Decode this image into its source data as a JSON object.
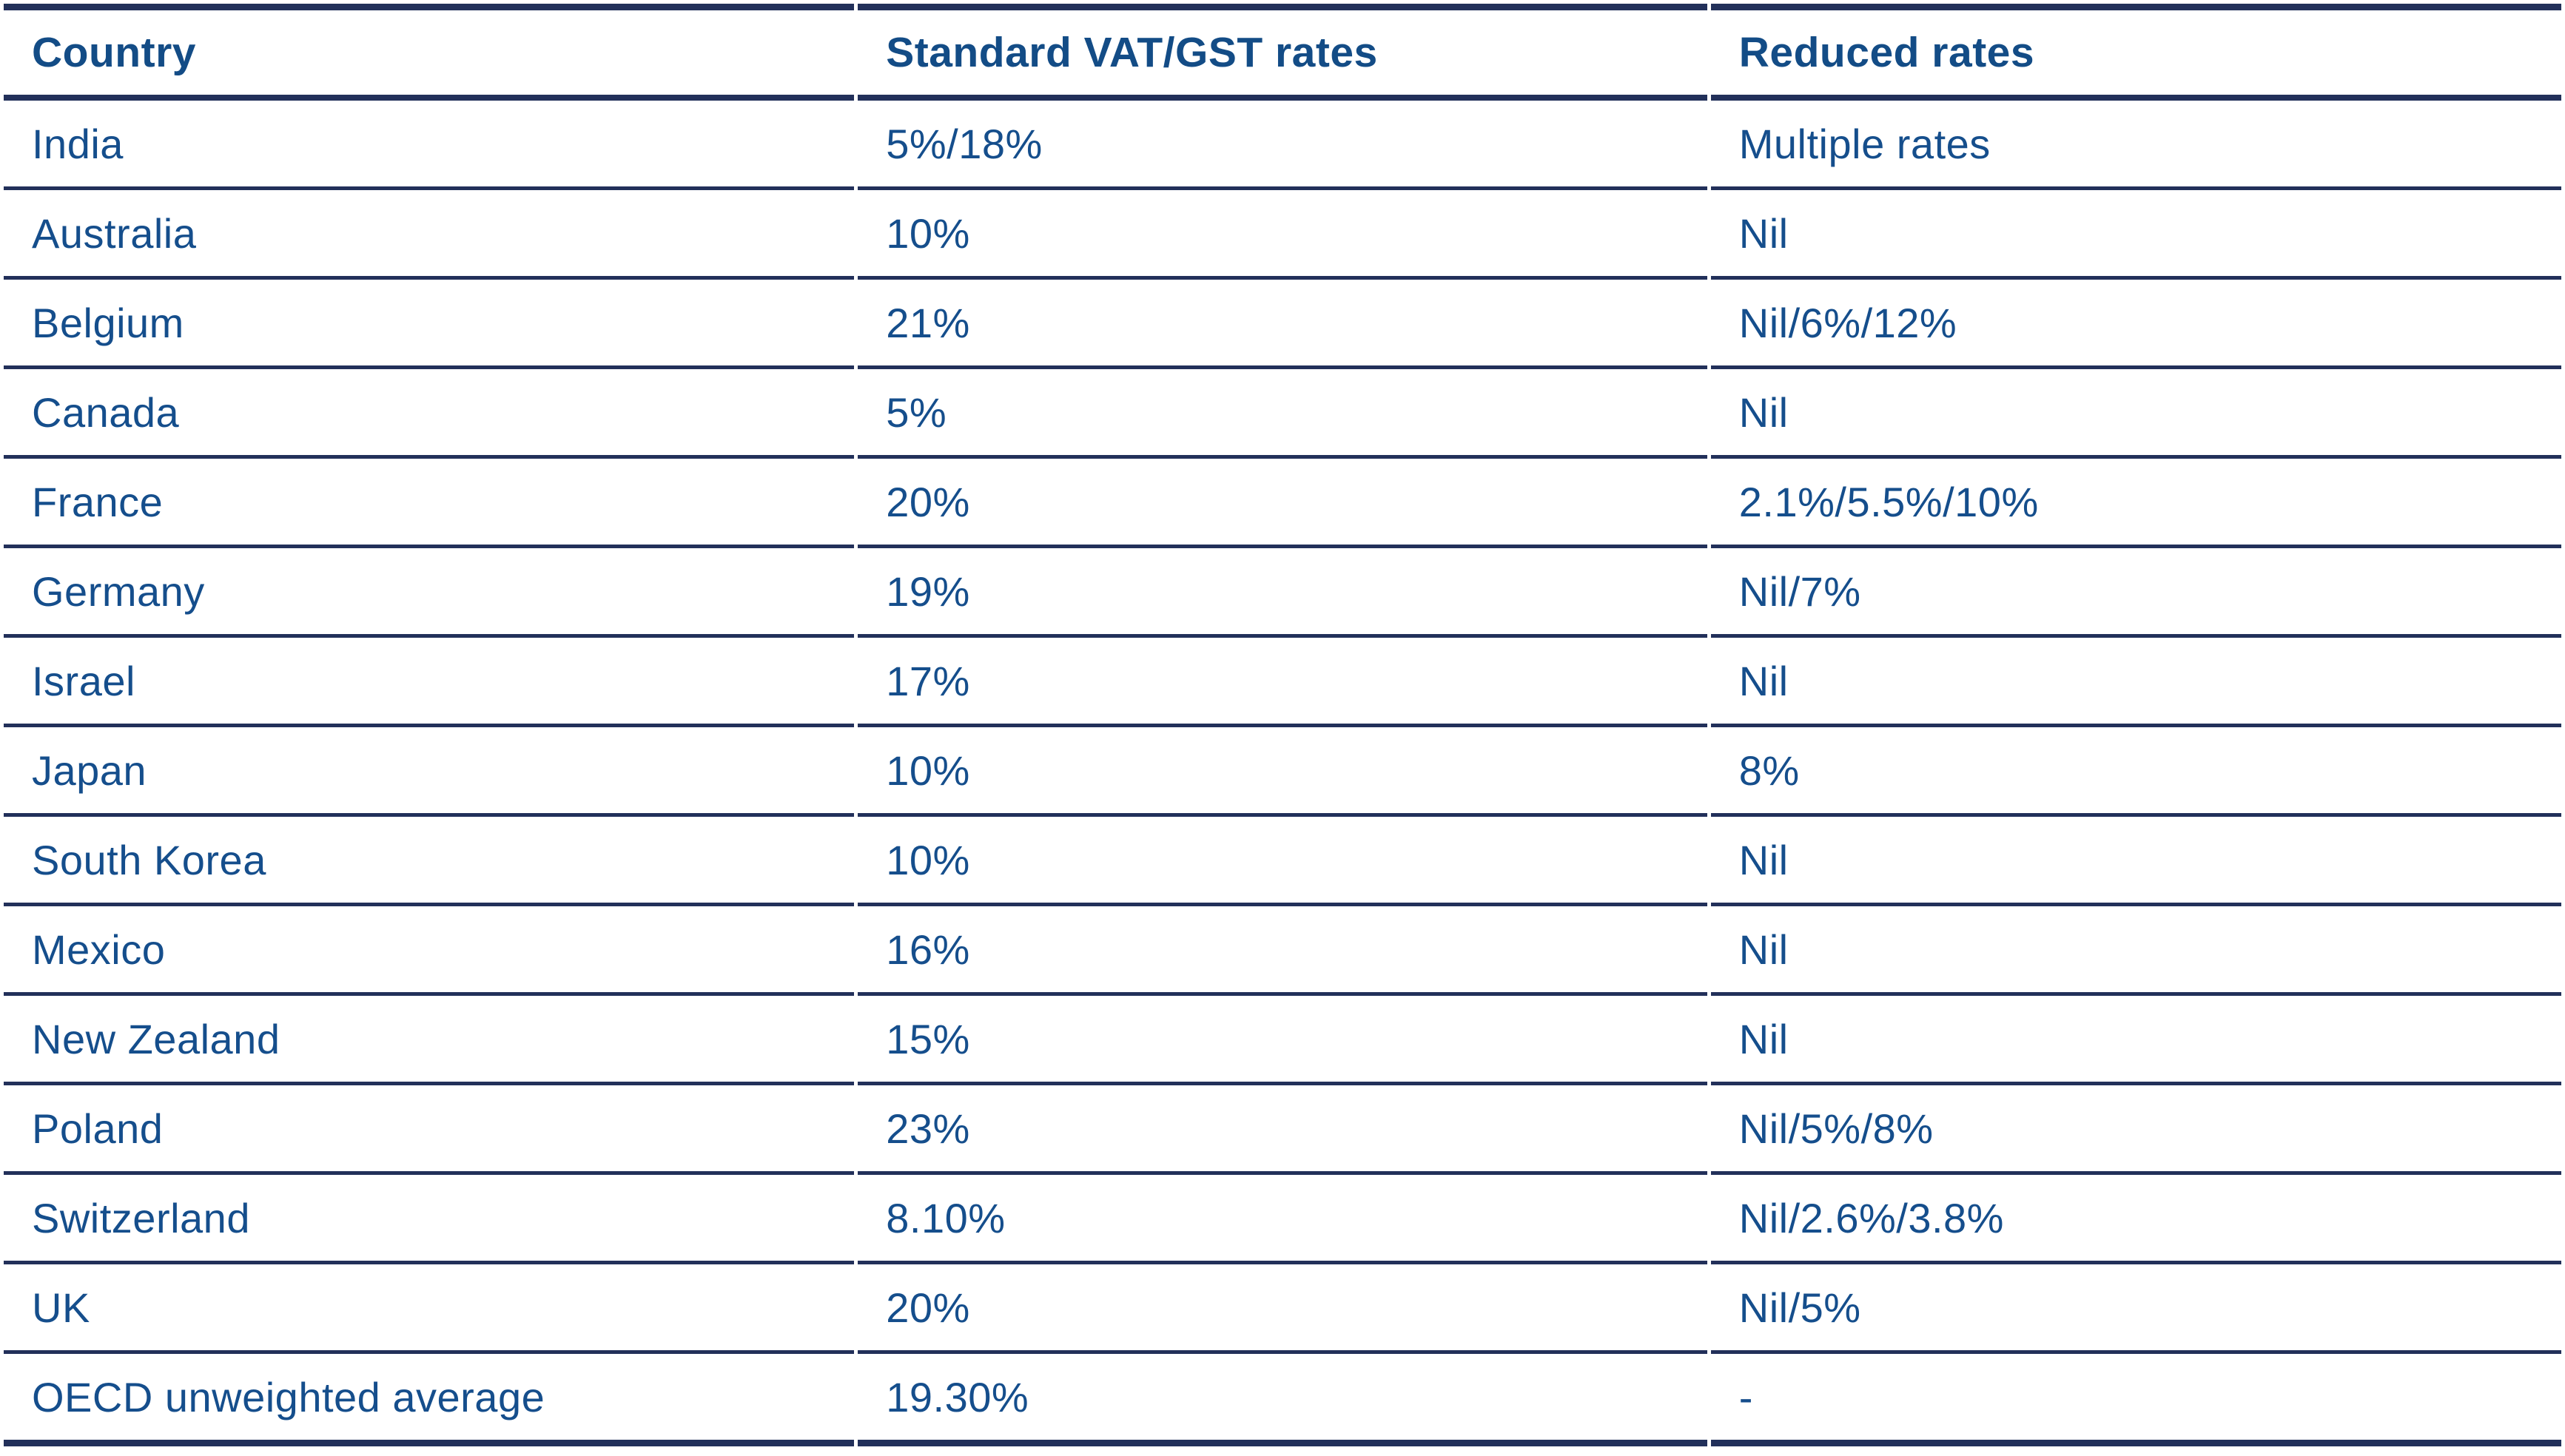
{
  "table": {
    "columns": [
      {
        "label": "Country"
      },
      {
        "label": "Standard VAT/GST rates"
      },
      {
        "label": "Reduced rates"
      }
    ],
    "rows": [
      {
        "country": "India",
        "standard": "5%/18%",
        "reduced": "Multiple rates"
      },
      {
        "country": "Australia",
        "standard": "10%",
        "reduced": "Nil"
      },
      {
        "country": "Belgium",
        "standard": "21%",
        "reduced": "Nil/6%/12%"
      },
      {
        "country": "Canada",
        "standard": "5%",
        "reduced": "Nil"
      },
      {
        "country": "France",
        "standard": "20%",
        "reduced": "2.1%/5.5%/10%"
      },
      {
        "country": "Germany",
        "standard": "19%",
        "reduced": "Nil/7%"
      },
      {
        "country": "Israel",
        "standard": "17%",
        "reduced": "Nil"
      },
      {
        "country": "Japan",
        "standard": "10%",
        "reduced": "8%"
      },
      {
        "country": "South Korea",
        "standard": "10%",
        "reduced": "Nil"
      },
      {
        "country": "Mexico",
        "standard": "16%",
        "reduced": "Nil"
      },
      {
        "country": "New Zealand",
        "standard": "15%",
        "reduced": "Nil"
      },
      {
        "country": "Poland",
        "standard": "23%",
        "reduced": "Nil/5%/8%"
      },
      {
        "country": "Switzerland",
        "standard": "8.10%",
        "reduced": "Nil/2.6%/3.8%"
      },
      {
        "country": "UK",
        "standard": "20%",
        "reduced": "Nil/5%"
      },
      {
        "country": "OECD unweighted average",
        "standard": "19.30%",
        "reduced": "-"
      }
    ]
  },
  "colors": {
    "text_blue": "#154E8C",
    "header_blue": "#134C86",
    "border_navy": "#22305A",
    "background": "#FFFFFF"
  }
}
